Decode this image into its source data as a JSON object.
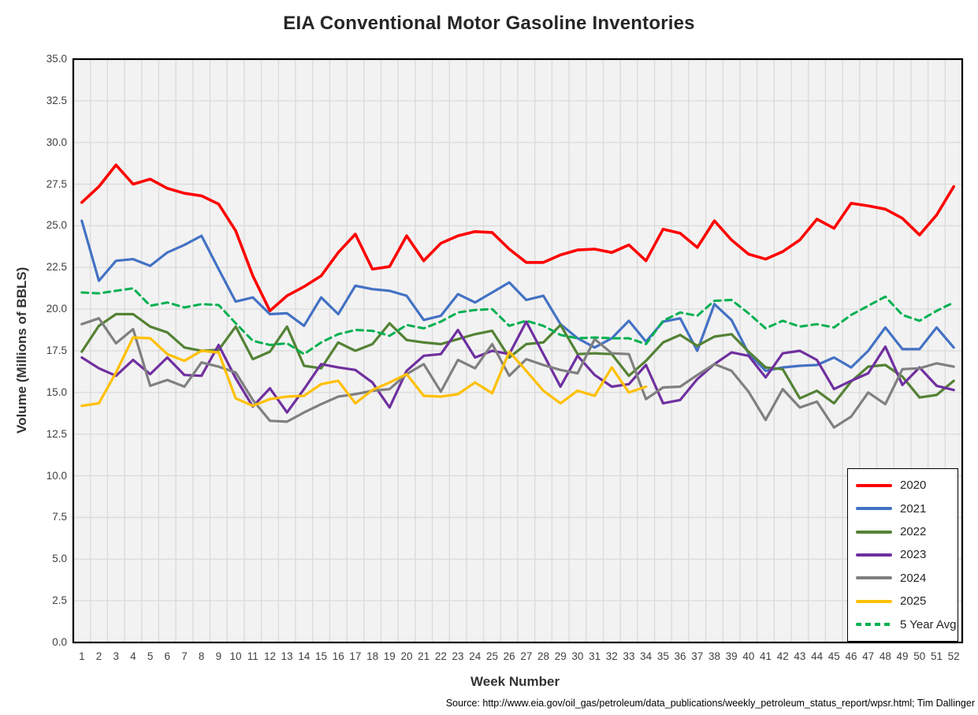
{
  "title": "EIA Conventional Motor Gasoline Inventories",
  "source_note": "Source: http://www.eia.gov/oil_gas/petroleum/data_publications/weekly_petroleum_status_report/wpsr.html; Tim Dallinger",
  "style": {
    "plot_bg": "#f2f2f2",
    "grid_color": "#dadada",
    "frame_color": "#000000",
    "tick_color": "#404040",
    "title_color": "#262626"
  },
  "chart_data": {
    "type": "line",
    "title": "EIA Conventional Motor Gasoline Inventories",
    "xlabel": "Week Number",
    "ylabel": "Volume (Millions of BBLS)",
    "ylim": [
      0,
      35
    ],
    "ytick_step": 2.5,
    "xlim_weeks": [
      1,
      52
    ],
    "grid": true,
    "legend_position": "inside-lower-right",
    "categories": [
      1,
      2,
      3,
      4,
      5,
      6,
      7,
      8,
      9,
      10,
      11,
      12,
      13,
      14,
      15,
      16,
      17,
      18,
      19,
      20,
      21,
      22,
      23,
      24,
      25,
      26,
      27,
      28,
      29,
      30,
      31,
      32,
      33,
      34,
      35,
      36,
      37,
      38,
      39,
      40,
      41,
      42,
      43,
      44,
      45,
      46,
      47,
      48,
      49,
      50,
      51,
      52
    ],
    "series": [
      {
        "name": "2020",
        "color": "#FF0000",
        "dashed": false,
        "width": 3.6,
        "values": [
          26.4,
          27.35,
          28.65,
          27.5,
          27.8,
          27.25,
          26.95,
          26.8,
          26.3,
          24.7,
          22.0,
          19.9,
          20.8,
          21.35,
          22.0,
          23.4,
          24.5,
          22.4,
          22.55,
          24.4,
          22.9,
          23.95,
          24.4,
          24.65,
          24.6,
          23.6,
          22.8,
          22.8,
          23.25,
          23.55,
          23.6,
          23.4,
          23.85,
          22.9,
          24.8,
          24.55,
          23.7,
          25.3,
          24.15,
          23.3,
          23.0,
          23.45,
          24.15,
          25.4,
          24.85,
          26.35,
          26.2,
          26.0,
          25.45,
          24.45,
          25.65,
          27.35
        ]
      },
      {
        "name": "2021",
        "color": "#4472C4",
        "dashed": false,
        "width": 3.2,
        "values": [
          25.3,
          21.7,
          22.9,
          23.0,
          22.6,
          23.4,
          23.85,
          24.4,
          22.4,
          20.45,
          20.7,
          19.7,
          19.75,
          19.0,
          20.7,
          19.7,
          21.4,
          21.2,
          21.1,
          20.8,
          19.35,
          19.6,
          20.9,
          20.4,
          21.0,
          21.6,
          20.55,
          20.8,
          19.1,
          18.25,
          17.7,
          18.25,
          19.3,
          18.05,
          19.25,
          19.45,
          17.5,
          20.3,
          19.35,
          17.35,
          16.3,
          16.5,
          16.6,
          16.65,
          17.1,
          16.5,
          17.5,
          18.9,
          17.6,
          17.6,
          18.9,
          17.7
        ]
      },
      {
        "name": "2022",
        "color": "#548235",
        "dashed": false,
        "width": 3.2,
        "values": [
          17.45,
          19.0,
          19.7,
          19.7,
          18.95,
          18.6,
          17.7,
          17.5,
          17.55,
          18.95,
          17.0,
          17.45,
          18.95,
          16.6,
          16.45,
          18.0,
          17.5,
          17.9,
          19.15,
          18.15,
          18.0,
          17.9,
          18.2,
          18.5,
          18.7,
          17.1,
          17.9,
          18.0,
          19.05,
          17.3,
          17.35,
          17.3,
          16.0,
          16.9,
          18.0,
          18.45,
          17.8,
          18.35,
          18.5,
          17.45,
          16.5,
          16.4,
          14.65,
          15.1,
          14.35,
          15.65,
          16.55,
          16.65,
          15.95,
          14.7,
          14.85,
          15.7
        ]
      },
      {
        "name": "2023",
        "color": "#7030A0",
        "dashed": false,
        "width": 3.2,
        "values": [
          17.1,
          16.45,
          16.0,
          16.95,
          16.1,
          17.1,
          16.05,
          16.0,
          17.85,
          15.85,
          14.15,
          15.25,
          13.8,
          15.2,
          16.7,
          16.5,
          16.35,
          15.6,
          14.1,
          16.3,
          17.2,
          17.3,
          18.75,
          17.1,
          17.5,
          17.3,
          19.25,
          17.3,
          15.35,
          17.2,
          16.05,
          15.35,
          15.5,
          16.65,
          14.35,
          14.55,
          15.8,
          16.7,
          17.4,
          17.2,
          15.9,
          17.35,
          17.5,
          16.95,
          15.2,
          15.7,
          16.15,
          17.75,
          15.45,
          16.5,
          15.4,
          15.15
        ]
      },
      {
        "name": "2024",
        "color": "#808080",
        "dashed": false,
        "width": 3.2,
        "values": [
          19.1,
          19.45,
          17.95,
          18.8,
          15.4,
          15.75,
          15.35,
          16.8,
          16.55,
          16.2,
          14.55,
          13.3,
          13.25,
          13.8,
          14.3,
          14.75,
          14.9,
          15.1,
          15.2,
          16.1,
          16.7,
          15.05,
          16.95,
          16.45,
          17.9,
          16.0,
          17.0,
          16.65,
          16.35,
          16.15,
          18.2,
          17.35,
          17.3,
          14.6,
          15.3,
          15.35,
          16.05,
          16.7,
          16.3,
          15.05,
          13.35,
          15.2,
          14.1,
          14.45,
          12.9,
          13.55,
          15.0,
          14.3,
          16.4,
          16.45,
          16.75,
          16.55
        ]
      },
      {
        "name": "2025",
        "color": "#FFC000",
        "dashed": false,
        "width": 3.2,
        "values": [
          14.2,
          14.35,
          16.2,
          18.3,
          18.25,
          17.3,
          16.9,
          17.5,
          17.4,
          14.65,
          14.2,
          14.6,
          14.75,
          14.8,
          15.5,
          15.7,
          14.35,
          15.15,
          15.6,
          16.1,
          14.8,
          14.75,
          14.9,
          15.6,
          14.95,
          17.45,
          16.3,
          15.1,
          14.35,
          15.1,
          14.8,
          16.5,
          15.0,
          15.35
        ]
      },
      {
        "name": "5 Year Avg",
        "color": "#00B050",
        "dashed": true,
        "width": 3.0,
        "values": [
          21.0,
          20.95,
          21.1,
          21.25,
          20.2,
          20.4,
          20.1,
          20.3,
          20.25,
          19.15,
          18.1,
          17.85,
          17.95,
          17.3,
          18.0,
          18.5,
          18.75,
          18.7,
          18.4,
          19.05,
          18.85,
          19.25,
          19.8,
          19.95,
          20.0,
          19.0,
          19.3,
          19.0,
          18.45,
          18.25,
          18.3,
          18.25,
          18.25,
          17.9,
          19.3,
          19.8,
          19.6,
          20.5,
          20.55,
          19.75,
          18.85,
          19.3,
          18.95,
          19.1,
          18.9,
          19.65,
          20.2,
          20.75,
          19.65,
          19.3,
          19.9,
          20.4
        ]
      }
    ]
  }
}
